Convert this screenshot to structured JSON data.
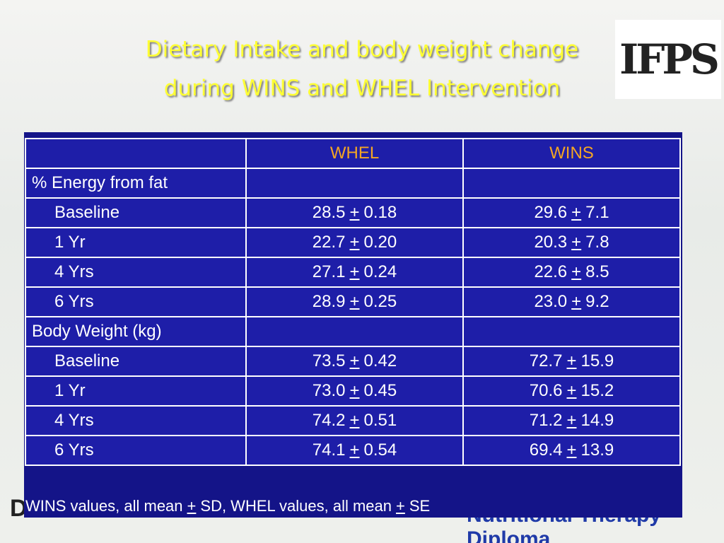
{
  "header": {
    "title_lines": [
      "Dietary Intake and body weight change",
      "during WINS and WHEL Intervention"
    ],
    "logo": "IFPS"
  },
  "watermark": {
    "left": "Dr.Hatem ElBitar",
    "right": "Nutritional Therapy Diploma"
  },
  "table": {
    "columns": [
      "WHEL",
      "WINS"
    ],
    "sections": [
      {
        "label": "% Energy from fat",
        "rows": [
          {
            "label": "Baseline",
            "cells": [
              {
                "mean": "28.5",
                "pm": "+",
                "spread": "0.18"
              },
              {
                "mean": "29.6",
                "pm": "+",
                "spread": "7.1"
              }
            ]
          },
          {
            "label": "1 Yr",
            "cells": [
              {
                "mean": "22.7",
                "pm": "+",
                "spread": "0.20"
              },
              {
                "mean": "20.3",
                "pm": "+",
                "spread": "7.8"
              }
            ]
          },
          {
            "label": "4 Yrs",
            "cells": [
              {
                "mean": "27.1",
                "pm": "+",
                "spread": "0.24"
              },
              {
                "mean": "22.6",
                "pm": "+",
                "spread": "8.5"
              }
            ]
          },
          {
            "label": "6 Yrs",
            "cells": [
              {
                "mean": "28.9",
                "pm": "+",
                "spread": "0.25"
              },
              {
                "mean": "23.0",
                "pm": "+",
                "spread": "9.2"
              }
            ]
          }
        ]
      },
      {
        "label": "Body Weight (kg)",
        "rows": [
          {
            "label": "Baseline",
            "cells": [
              {
                "mean": "73.5",
                "pm": "+",
                "spread": "0.42"
              },
              {
                "mean": "72.7",
                "pm": "+",
                "spread": "15.9"
              }
            ]
          },
          {
            "label": "1 Yr",
            "cells": [
              {
                "mean": "73.0",
                "pm": "+",
                "spread": "0.45"
              },
              {
                "mean": "70.6",
                "pm": "+",
                "spread": "15.2"
              }
            ]
          },
          {
            "label": "4 Yrs",
            "cells": [
              {
                "mean": "74.2",
                "pm": "+",
                "spread": "0.51"
              },
              {
                "mean": "71.2",
                "pm": "+",
                "spread": "14.9"
              }
            ]
          },
          {
            "label": "6 Yrs",
            "cells": [
              {
                "mean": "74.1",
                "pm": "+",
                "spread": "0.54"
              },
              {
                "mean": "69.4",
                "pm": "+",
                "spread": "13.9"
              }
            ]
          }
        ]
      }
    ]
  },
  "footnote": [
    "WINS values, all mean",
    "+",
    "SD, WHEL values, all mean",
    "+",
    "SE"
  ]
}
